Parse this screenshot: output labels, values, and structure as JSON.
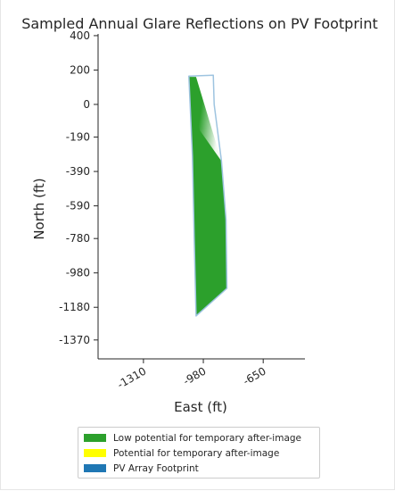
{
  "chart_data": {
    "type": "area",
    "title": "Sampled Annual Glare Reflections on PV Footprint",
    "xlabel": "East (ft)",
    "ylabel": "North (ft)",
    "xlim": [
      -1560,
      -420
    ],
    "ylim": [
      -1480,
      410
    ],
    "x_ticks": [
      -1310,
      -980,
      -650
    ],
    "x_tick_labels": [
      "-1310",
      "-980",
      "-650"
    ],
    "y_ticks": [
      400,
      200,
      0,
      -190,
      -390,
      -590,
      -780,
      -980,
      -1180,
      -1370
    ],
    "y_tick_labels": [
      "400",
      "200",
      "0",
      "-190",
      "-390",
      "-590",
      "-780",
      "-980",
      "-1180",
      "-1370"
    ],
    "grid": false,
    "legend_position": "bottom-center",
    "series": [
      {
        "name": "Low potential for temporary after-image",
        "color": "#2ca02c",
        "polygon": [
          [
            -1060,
            160
          ],
          [
            -1020,
            160
          ],
          [
            -880,
            -330
          ],
          [
            -855,
            -670
          ],
          [
            -850,
            -1070
          ],
          [
            -1020,
            -1230
          ],
          [
            -1030,
            -800
          ],
          [
            -1040,
            -300
          ]
        ]
      },
      {
        "name": "Potential for temporary after-image",
        "color": "#ffff00",
        "polygon": []
      },
      {
        "name": "PV Array Footprint",
        "color": "#1f77b4",
        "polygon": [
          [
            -1060,
            165
          ],
          [
            -925,
            170
          ],
          [
            -920,
            0
          ],
          [
            -880,
            -330
          ],
          [
            -855,
            -670
          ],
          [
            -850,
            -1070
          ],
          [
            -1020,
            -1230
          ],
          [
            -1030,
            -800
          ],
          [
            -1040,
            -300
          ]
        ]
      }
    ]
  },
  "legend": {
    "items": [
      {
        "label": "Low potential for temporary after-image",
        "color": "#2ca02c"
      },
      {
        "label": "Potential for temporary after-image",
        "color": "#ffff00"
      },
      {
        "label": "PV Array Footprint",
        "color": "#1f77b4"
      }
    ]
  }
}
